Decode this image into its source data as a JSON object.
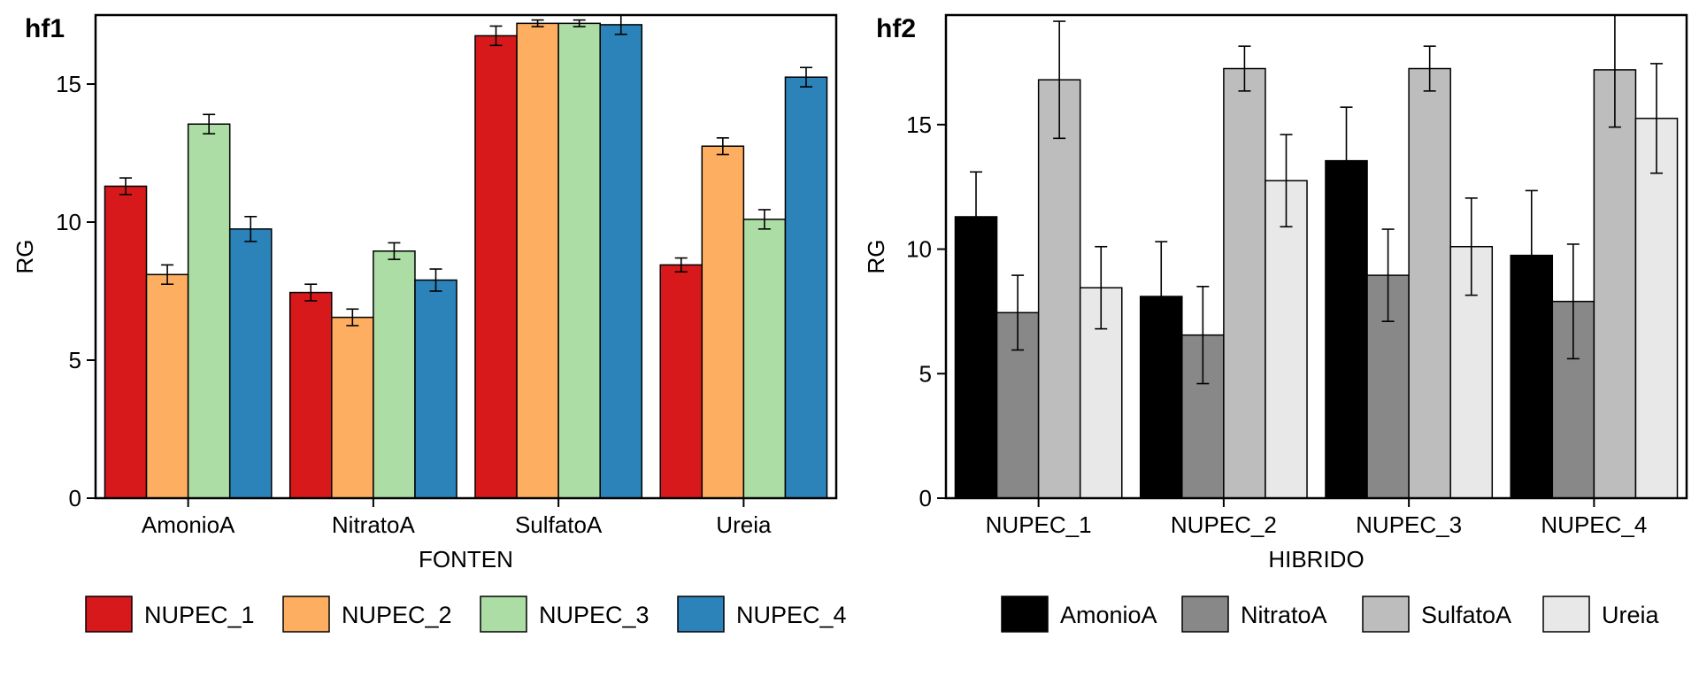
{
  "chart_data": [
    {
      "type": "bar",
      "panel_tag": "hf1",
      "xlabel": "FONTEN",
      "ylabel": "RG",
      "ylim": [
        0,
        17.5
      ],
      "yticks": [
        0,
        5,
        10,
        15
      ],
      "categories": [
        "AmonioA",
        "NitratoA",
        "SulfatoA",
        "Ureia"
      ],
      "series": [
        {
          "name": "NUPEC_1",
          "color": "#d7191c",
          "values": [
            11.3,
            7.45,
            16.75,
            8.45
          ],
          "errors": [
            0.3,
            0.3,
            0.35,
            0.25
          ]
        },
        {
          "name": "NUPEC_2",
          "color": "#fdae61",
          "values": [
            8.1,
            6.55,
            17.2,
            12.75
          ],
          "errors": [
            0.35,
            0.3,
            0.12,
            0.3
          ]
        },
        {
          "name": "NUPEC_3",
          "color": "#abdda4",
          "values": [
            13.55,
            8.95,
            17.2,
            10.1
          ],
          "errors": [
            0.35,
            0.3,
            0.12,
            0.35
          ]
        },
        {
          "name": "NUPEC_4",
          "color": "#2b83ba",
          "values": [
            9.75,
            7.9,
            17.15,
            15.25
          ],
          "errors": [
            0.45,
            0.4,
            0.35,
            0.35
          ]
        }
      ],
      "legend_position": "bottom",
      "legend_labels": [
        "NUPEC_1",
        "NUPEC_2",
        "NUPEC_3",
        "NUPEC_4"
      ]
    },
    {
      "type": "bar",
      "panel_tag": "hf2",
      "xlabel": "HIBRIDO",
      "ylabel": "RG",
      "ylim": [
        0,
        19.4
      ],
      "yticks": [
        0,
        5,
        10,
        15
      ],
      "categories": [
        "NUPEC_1",
        "NUPEC_2",
        "NUPEC_3",
        "NUPEC_4"
      ],
      "series": [
        {
          "name": "AmonioA",
          "color": "#000000",
          "values": [
            11.3,
            8.1,
            13.55,
            9.75
          ],
          "errors": [
            1.8,
            2.2,
            2.15,
            2.6
          ]
        },
        {
          "name": "NitratoA",
          "color": "#888888",
          "values": [
            7.45,
            6.55,
            8.95,
            7.9
          ],
          "errors": [
            1.5,
            1.95,
            1.85,
            2.3
          ]
        },
        {
          "name": "SulfatoA",
          "color": "#bdbdbd",
          "values": [
            16.8,
            17.25,
            17.25,
            17.2
          ],
          "errors": [
            2.35,
            0.9,
            0.9,
            2.3
          ]
        },
        {
          "name": "Ureia",
          "color": "#e8e8e8",
          "values": [
            8.45,
            12.75,
            10.1,
            15.25
          ],
          "errors": [
            1.65,
            1.85,
            1.95,
            2.2
          ]
        }
      ],
      "legend_position": "bottom",
      "legend_labels": [
        "AmonioA",
        "NitratoA",
        "SulfatoA",
        "Ureia"
      ]
    }
  ]
}
